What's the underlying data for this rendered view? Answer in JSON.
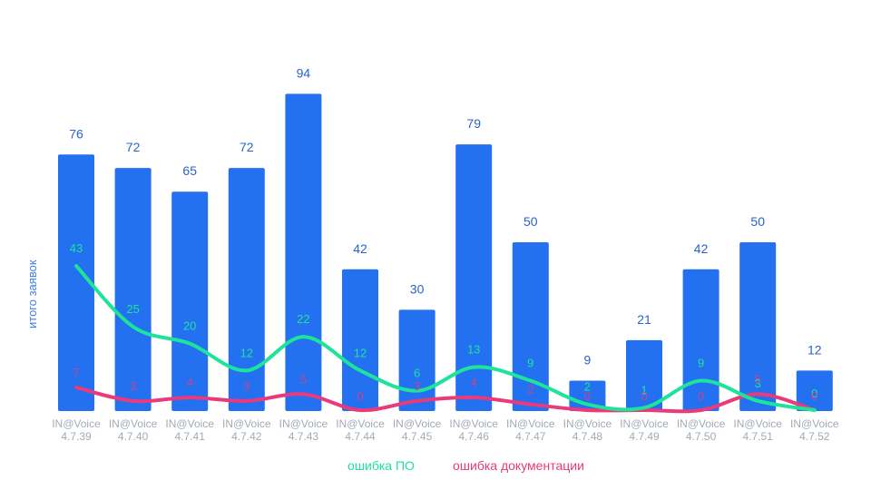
{
  "chart_data": {
    "type": "bar",
    "ylabel": "итого заявок",
    "categories": [
      [
        "IN@Voice",
        "4.7.39"
      ],
      [
        "IN@Voice",
        "4.7.40"
      ],
      [
        "IN@Voice",
        "4.7.41"
      ],
      [
        "IN@Voice",
        "4.7.42"
      ],
      [
        "IN@Voice",
        "4.7.43"
      ],
      [
        "IN@Voice",
        "4.7.44"
      ],
      [
        "IN@Voice",
        "4.7.45"
      ],
      [
        "IN@Voice",
        "4.7.46"
      ],
      [
        "IN@Voice",
        "4.7.47"
      ],
      [
        "IN@Voice",
        "4.7.48"
      ],
      [
        "IN@Voice",
        "4.7.49"
      ],
      [
        "IN@Voice",
        "4.7.50"
      ],
      [
        "IN@Voice",
        "4.7.51"
      ],
      [
        "IN@Voice",
        "4.7.52"
      ]
    ],
    "values": [
      76,
      72,
      65,
      72,
      94,
      42,
      30,
      79,
      50,
      9,
      21,
      42,
      50,
      12
    ],
    "ylim": [
      0,
      100
    ],
    "series": [
      {
        "name": "ошибка ПО",
        "type": "line",
        "color": "#1ee39a",
        "values": [
          43,
          25,
          20,
          12,
          22,
          12,
          6,
          13,
          9,
          2,
          1,
          9,
          3,
          0
        ]
      },
      {
        "name": "ошибка документации",
        "type": "line",
        "color": "#ea3a7a",
        "values": [
          7,
          3,
          4,
          3,
          5,
          0,
          3,
          4,
          2,
          0,
          0,
          0,
          5,
          0
        ]
      }
    ],
    "bar_color": "#2370f0",
    "legend_position": "bottom",
    "grid": false
  }
}
